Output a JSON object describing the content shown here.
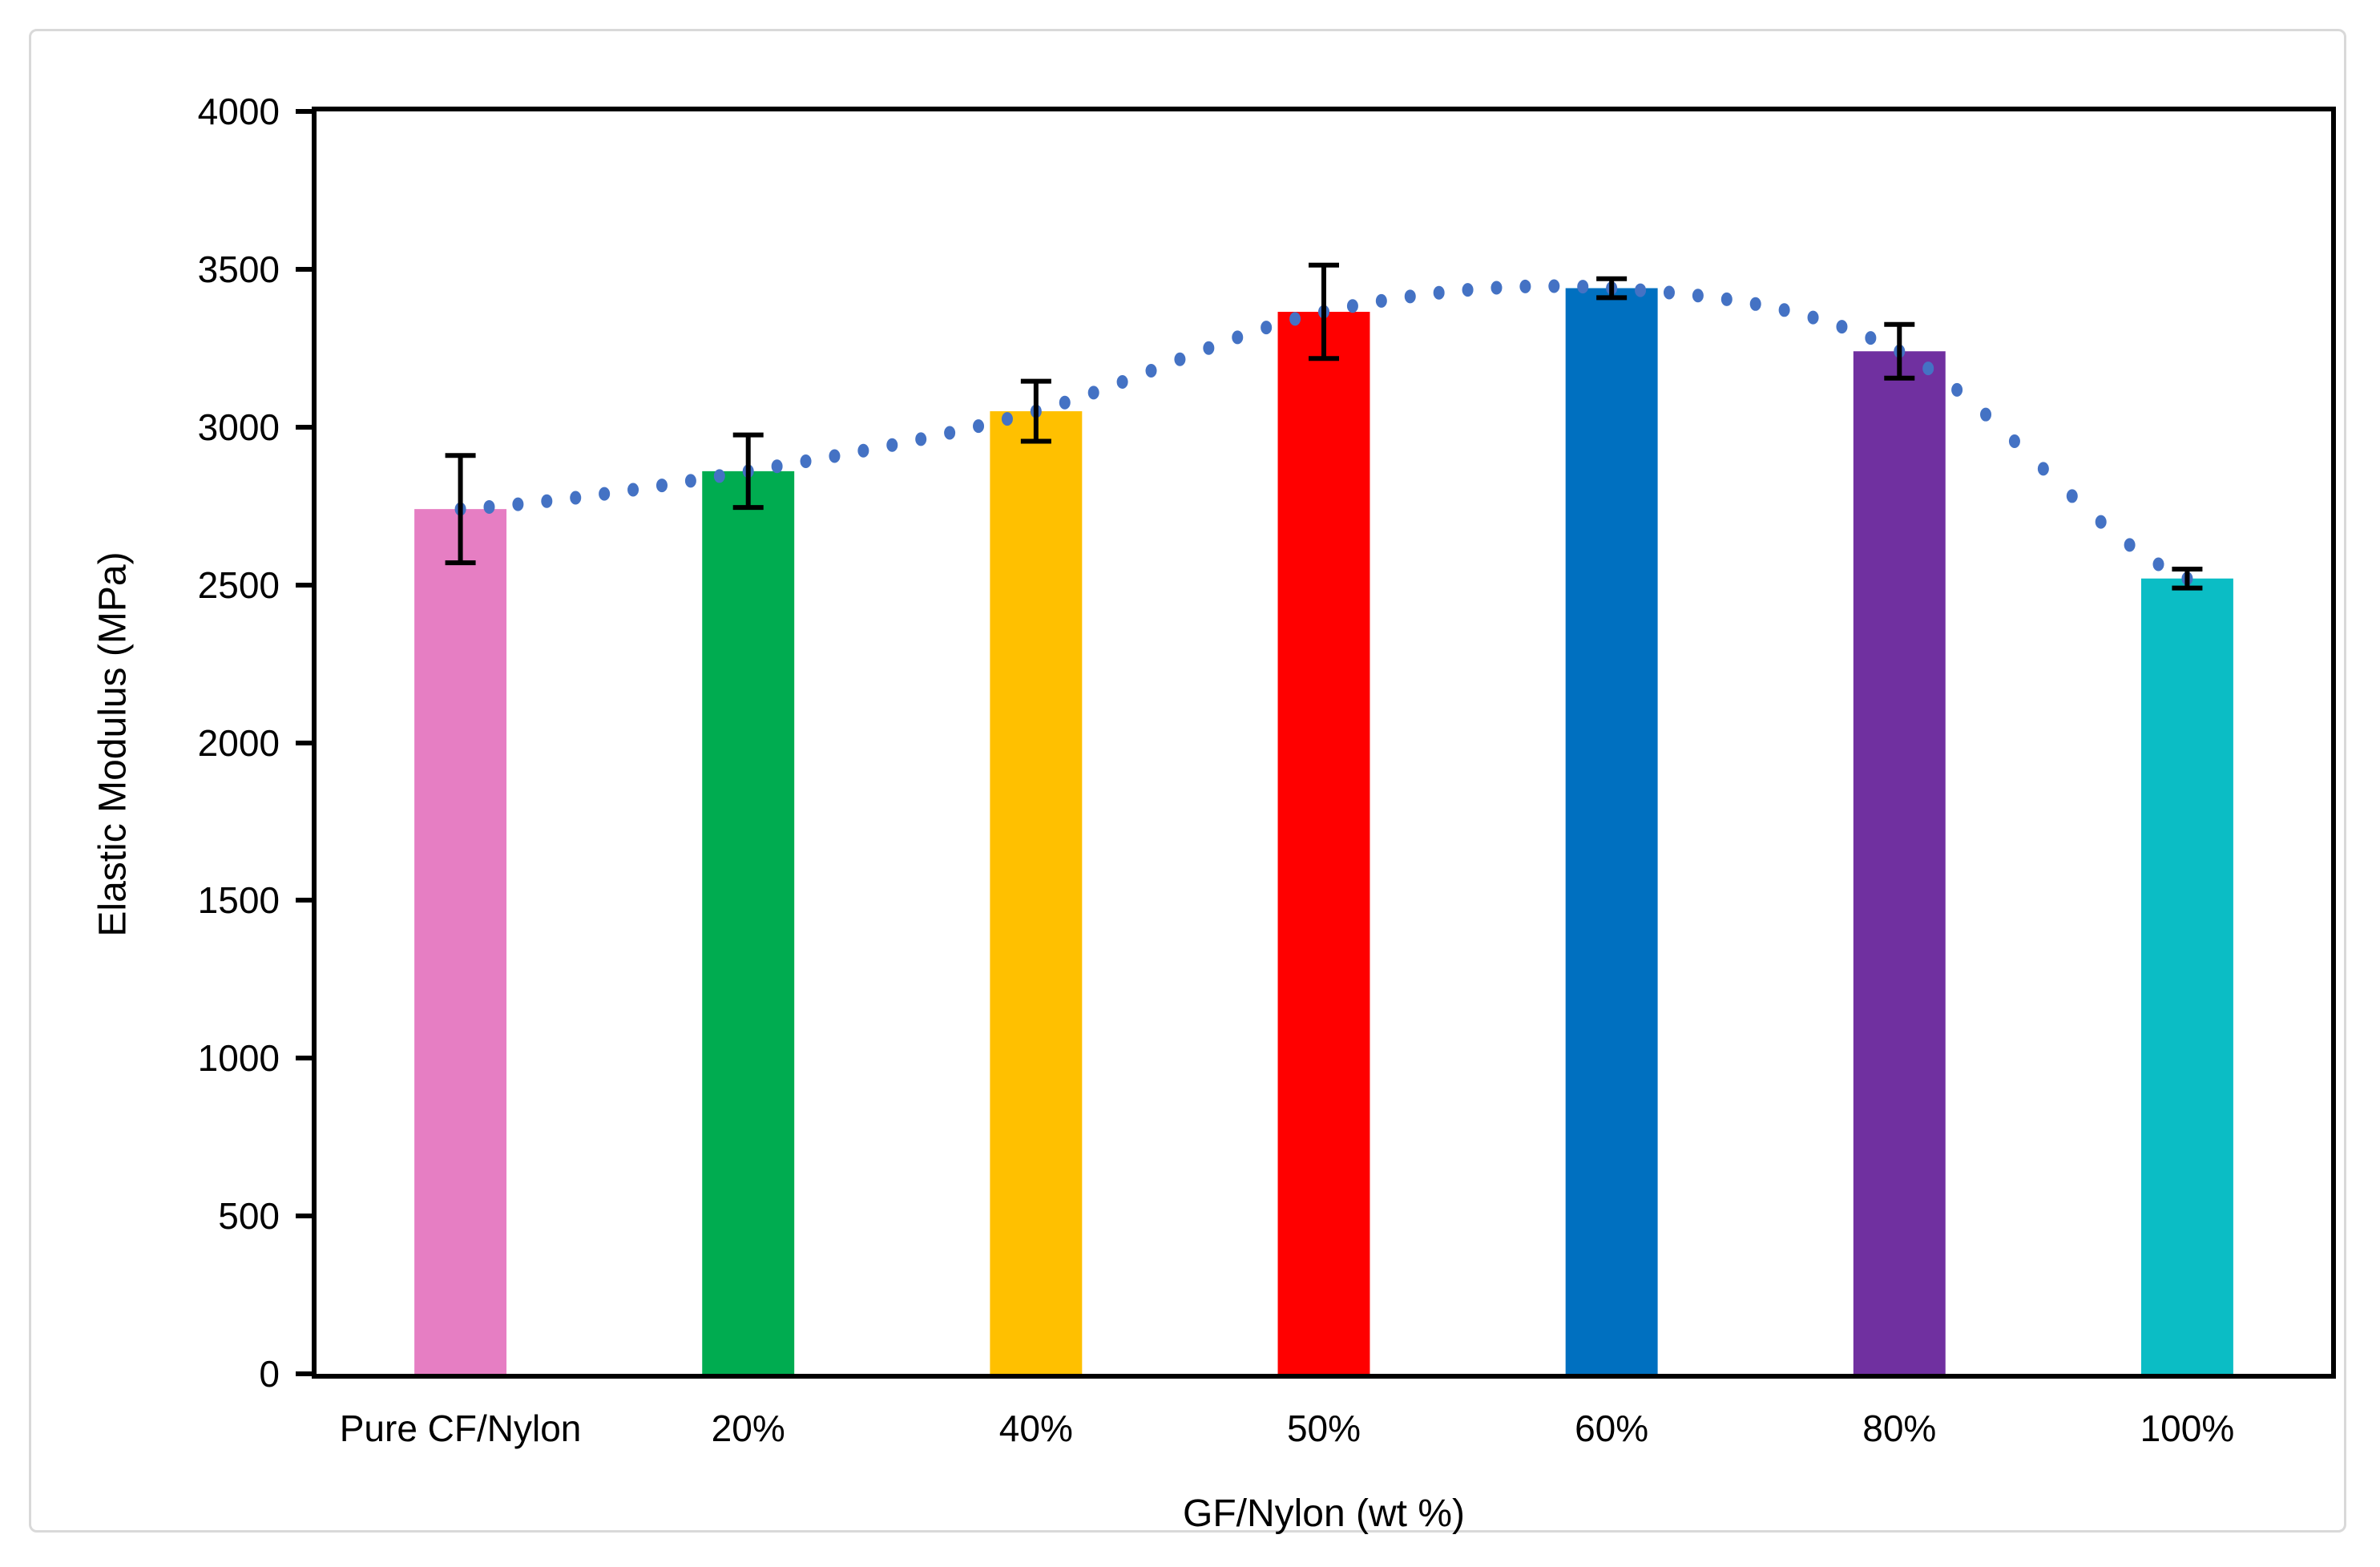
{
  "figure": {
    "background": "#FFFFFF",
    "frame_border_color": "#D9D9D9"
  },
  "chart_data": {
    "type": "bar",
    "title": "",
    "categories": [
      "Pure CF/Nylon",
      "20%",
      "40%",
      "50%",
      "60%",
      "80%",
      "100%"
    ],
    "values": [
      2740,
      2860,
      3050,
      3365,
      3440,
      3240,
      2520
    ],
    "error_bars": [
      170,
      115,
      95,
      148,
      30,
      85,
      30
    ],
    "bar_colors": [
      "#E67EC3",
      "#00AC50",
      "#FFC000",
      "#FF0000",
      "#0070C0",
      "#7030A0",
      "#0BBDC5"
    ],
    "trendline": {
      "style": "dotted",
      "color": "#4472C4",
      "description": "smooth fitted curve through bar tops"
    },
    "xlabel": "GF/Nylon (wt %)",
    "ylabel": "Elastic Modulus (MPa)",
    "ylim": [
      0,
      4000
    ],
    "yticks": [
      0,
      500,
      1000,
      1500,
      2000,
      2500,
      3000,
      3500,
      4000
    ],
    "grid": false,
    "legend": "none",
    "error_bar_color": "#000000",
    "axis_color": "#000000"
  }
}
